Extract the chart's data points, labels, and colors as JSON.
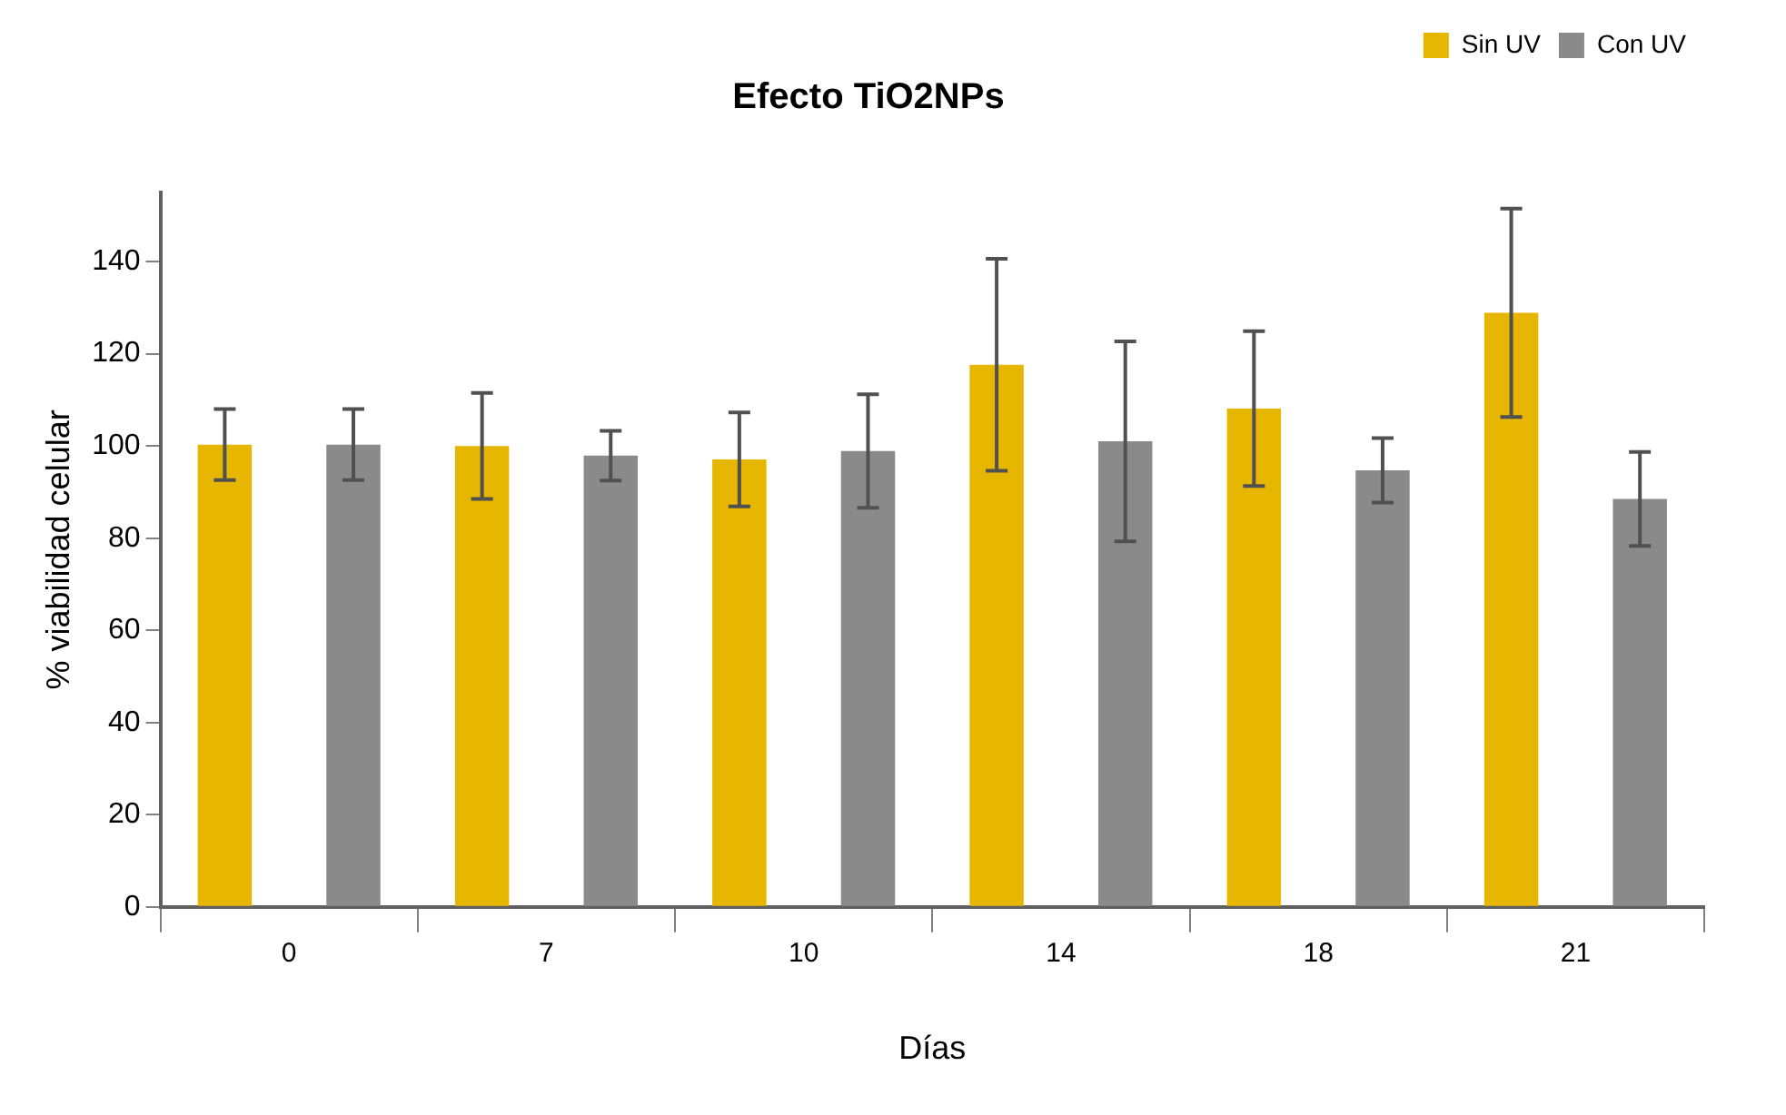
{
  "chart_data": {
    "type": "bar",
    "title": "Efecto TiO2NPs",
    "xlabel": "Días",
    "ylabel": "% viabilidad celular",
    "categories": [
      "0",
      "7",
      "10",
      "14",
      "18",
      "21"
    ],
    "series": [
      {
        "name": "Sin UV",
        "color": "#e6b600",
        "values": [
          100.3,
          100,
          97.1,
          117.6,
          108.1,
          128.9
        ],
        "errors": [
          7.7,
          11.5,
          10.2,
          23,
          16.8,
          22.6
        ]
      },
      {
        "name": "Con UV",
        "color": "#8a8a8a",
        "values": [
          100.3,
          97.9,
          98.9,
          101,
          94.7,
          88.5
        ],
        "errors": [
          7.7,
          5.4,
          12.3,
          21.7,
          7,
          10.2
        ]
      }
    ],
    "ylim": [
      0,
      155
    ],
    "yticks": [
      0,
      20,
      40,
      60,
      80,
      100,
      120,
      140
    ],
    "grid": false,
    "legend": "top right"
  }
}
